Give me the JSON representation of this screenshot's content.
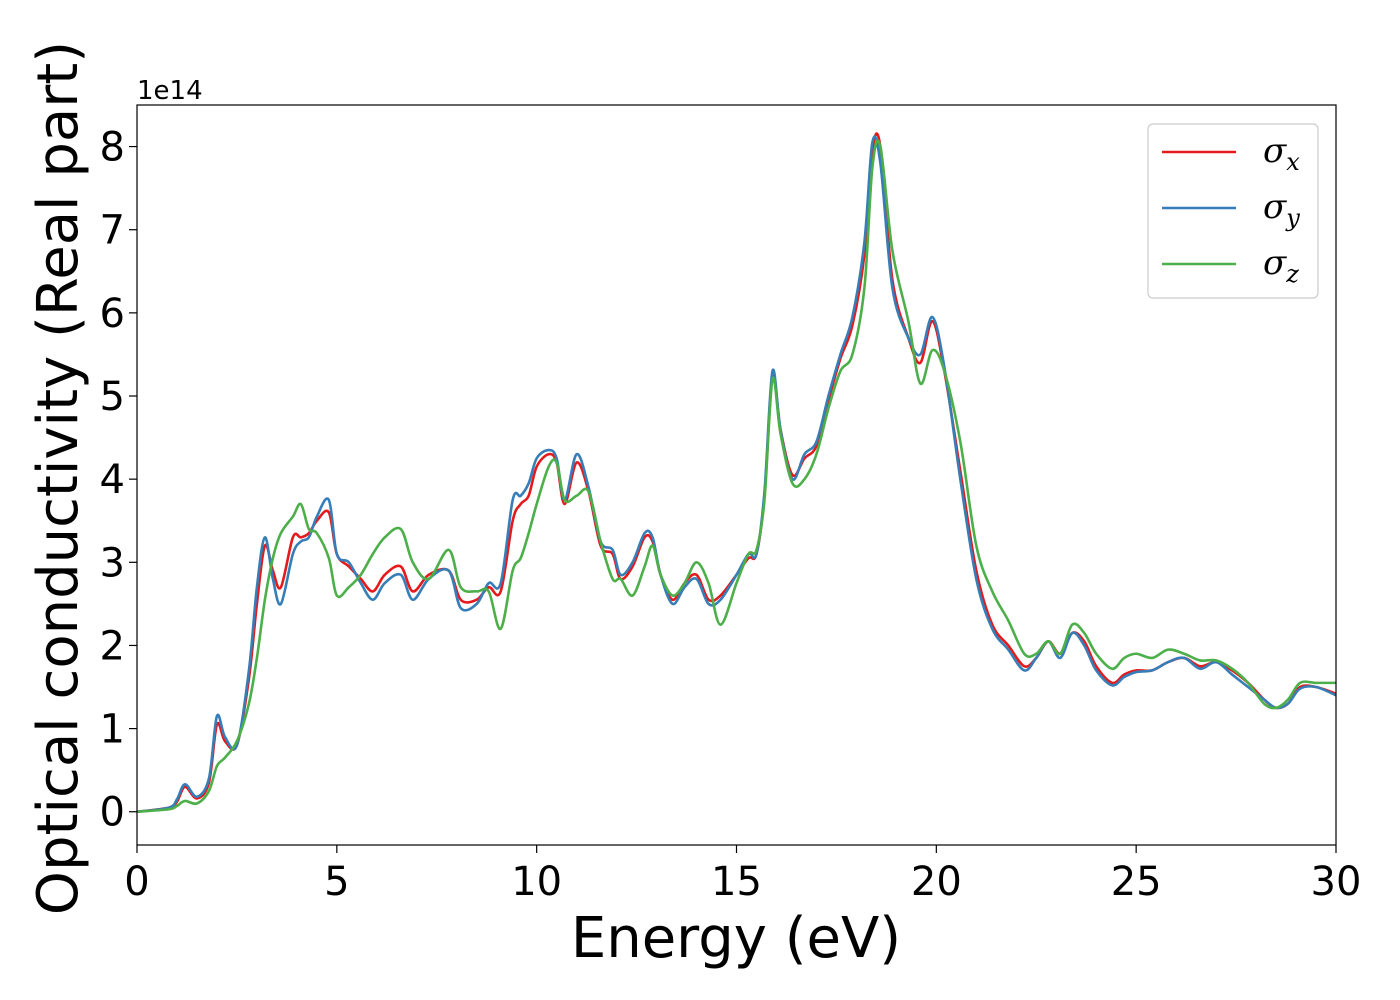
{
  "chart_data": {
    "type": "line",
    "xlabel": "Energy (eV)",
    "ylabel": "Optical conductivity (Real part)",
    "y_offset_label": "1e14",
    "xlim": [
      0,
      30
    ],
    "ylim": [
      -0.4,
      8.5
    ],
    "x_ticks": [
      0,
      5,
      10,
      15,
      20,
      25,
      30
    ],
    "y_ticks": [
      0,
      1,
      2,
      3,
      4,
      5,
      6,
      7,
      8
    ],
    "grid": false,
    "legend_position": "top-right",
    "series": [
      {
        "name": "σx",
        "symbol": "σ",
        "subscript": "x",
        "color": "#e41a1c",
        "x": [
          0,
          0.8,
          1.0,
          1.2,
          1.5,
          1.8,
          2.0,
          2.2,
          2.5,
          2.8,
          3.0,
          3.2,
          3.4,
          3.6,
          3.9,
          4.1,
          4.3,
          4.5,
          4.8,
          5.0,
          5.3,
          5.6,
          5.9,
          6.2,
          6.6,
          6.9,
          7.3,
          7.8,
          8.1,
          8.5,
          8.8,
          9.1,
          9.4,
          9.6,
          9.8,
          10.0,
          10.3,
          10.5,
          10.7,
          11.0,
          11.3,
          11.6,
          11.9,
          12.1,
          12.4,
          12.7,
          12.9,
          13.1,
          13.4,
          13.7,
          14.0,
          14.3,
          14.6,
          15.0,
          15.3,
          15.5,
          15.7,
          15.9,
          16.1,
          16.4,
          16.7,
          17.0,
          17.3,
          17.6,
          17.9,
          18.2,
          18.4,
          18.6,
          18.9,
          19.3,
          19.6,
          19.9,
          20.2,
          20.6,
          21.0,
          21.4,
          21.8,
          22.2,
          22.5,
          22.8,
          23.1,
          23.4,
          23.7,
          24.0,
          24.4,
          24.7,
          25.0,
          25.4,
          25.8,
          26.2,
          26.6,
          27.0,
          27.4,
          27.8,
          28.2,
          28.5,
          28.8,
          29.1,
          29.5,
          30.0
        ],
        "values": [
          0,
          0.05,
          0.12,
          0.3,
          0.16,
          0.35,
          1.05,
          0.85,
          0.8,
          1.6,
          2.5,
          3.2,
          2.9,
          2.7,
          3.3,
          3.3,
          3.35,
          3.5,
          3.6,
          3.1,
          2.95,
          2.8,
          2.65,
          2.85,
          2.95,
          2.65,
          2.85,
          2.9,
          2.55,
          2.55,
          2.7,
          2.65,
          3.5,
          3.7,
          3.8,
          4.15,
          4.3,
          4.2,
          3.7,
          4.2,
          3.85,
          3.2,
          3.1,
          2.8,
          2.95,
          3.3,
          3.25,
          2.85,
          2.55,
          2.75,
          2.85,
          2.55,
          2.6,
          2.85,
          3.05,
          3.1,
          3.8,
          5.25,
          4.6,
          4.05,
          4.25,
          4.4,
          4.95,
          5.45,
          5.85,
          6.7,
          7.95,
          8.0,
          6.4,
          5.7,
          5.4,
          5.9,
          5.3,
          4.1,
          2.9,
          2.25,
          2.0,
          1.75,
          1.85,
          2.05,
          1.9,
          2.15,
          2.05,
          1.75,
          1.55,
          1.65,
          1.7,
          1.7,
          1.8,
          1.85,
          1.75,
          1.8,
          1.7,
          1.55,
          1.35,
          1.25,
          1.3,
          1.5,
          1.5,
          1.42
        ]
      },
      {
        "name": "σy",
        "symbol": "σ",
        "subscript": "y",
        "color": "#377eb8",
        "x": [
          0,
          0.8,
          1.0,
          1.2,
          1.5,
          1.8,
          2.0,
          2.2,
          2.5,
          2.8,
          3.0,
          3.2,
          3.4,
          3.6,
          3.9,
          4.1,
          4.3,
          4.5,
          4.8,
          5.0,
          5.3,
          5.6,
          5.9,
          6.2,
          6.6,
          6.9,
          7.3,
          7.8,
          8.1,
          8.5,
          8.8,
          9.1,
          9.4,
          9.6,
          9.8,
          10.0,
          10.3,
          10.5,
          10.7,
          11.0,
          11.3,
          11.6,
          11.9,
          12.1,
          12.4,
          12.7,
          12.9,
          13.1,
          13.4,
          13.7,
          14.0,
          14.3,
          14.6,
          15.0,
          15.3,
          15.5,
          15.7,
          15.9,
          16.1,
          16.4,
          16.7,
          17.0,
          17.3,
          17.6,
          17.9,
          18.2,
          18.4,
          18.6,
          18.9,
          19.3,
          19.6,
          19.9,
          20.2,
          20.6,
          21.0,
          21.4,
          21.8,
          22.2,
          22.5,
          22.8,
          23.1,
          23.4,
          23.7,
          24.0,
          24.4,
          24.7,
          25.0,
          25.4,
          25.8,
          26.2,
          26.6,
          27.0,
          27.4,
          27.8,
          28.2,
          28.5,
          28.8,
          29.1,
          29.5,
          30.0
        ],
        "values": [
          0,
          0.05,
          0.15,
          0.33,
          0.18,
          0.4,
          1.15,
          0.9,
          0.8,
          1.7,
          2.7,
          3.3,
          2.8,
          2.5,
          3.1,
          3.25,
          3.3,
          3.55,
          3.75,
          3.1,
          3.0,
          2.75,
          2.55,
          2.75,
          2.85,
          2.55,
          2.8,
          2.9,
          2.45,
          2.5,
          2.75,
          2.75,
          3.75,
          3.8,
          3.95,
          4.25,
          4.35,
          4.25,
          3.75,
          4.3,
          3.9,
          3.25,
          3.15,
          2.85,
          3.0,
          3.35,
          3.3,
          2.85,
          2.5,
          2.7,
          2.8,
          2.5,
          2.55,
          2.85,
          3.1,
          3.1,
          3.85,
          5.3,
          4.6,
          4.0,
          4.3,
          4.45,
          5.0,
          5.5,
          5.95,
          6.85,
          8.05,
          7.8,
          6.3,
          5.7,
          5.5,
          5.95,
          5.35,
          4.0,
          2.8,
          2.2,
          1.95,
          1.7,
          1.85,
          2.05,
          1.85,
          2.15,
          2.0,
          1.7,
          1.52,
          1.62,
          1.68,
          1.7,
          1.8,
          1.85,
          1.72,
          1.8,
          1.65,
          1.5,
          1.35,
          1.25,
          1.3,
          1.48,
          1.5,
          1.4
        ]
      },
      {
        "name": "σz",
        "symbol": "σ",
        "subscript": "z",
        "color": "#4daf4a",
        "x": [
          0,
          0.8,
          1.0,
          1.2,
          1.5,
          1.8,
          2.0,
          2.2,
          2.5,
          2.8,
          3.0,
          3.2,
          3.4,
          3.6,
          3.9,
          4.1,
          4.3,
          4.5,
          4.8,
          5.0,
          5.3,
          5.6,
          5.9,
          6.2,
          6.6,
          6.9,
          7.3,
          7.8,
          8.1,
          8.5,
          8.8,
          9.1,
          9.4,
          9.6,
          9.8,
          10.0,
          10.3,
          10.5,
          10.7,
          11.0,
          11.3,
          11.6,
          11.9,
          12.1,
          12.4,
          12.7,
          12.9,
          13.1,
          13.4,
          13.7,
          14.0,
          14.3,
          14.6,
          15.0,
          15.3,
          15.5,
          15.7,
          15.9,
          16.1,
          16.4,
          16.7,
          17.0,
          17.3,
          17.6,
          17.9,
          18.2,
          18.4,
          18.6,
          18.9,
          19.3,
          19.6,
          19.9,
          20.2,
          20.6,
          21.0,
          21.4,
          21.8,
          22.2,
          22.5,
          22.8,
          23.1,
          23.4,
          23.7,
          24.0,
          24.4,
          24.7,
          25.0,
          25.4,
          25.8,
          26.2,
          26.6,
          27.0,
          27.4,
          27.8,
          28.2,
          28.5,
          28.8,
          29.1,
          29.5,
          30.0
        ],
        "values": [
          0,
          0.03,
          0.07,
          0.13,
          0.1,
          0.25,
          0.55,
          0.65,
          0.85,
          1.3,
          1.85,
          2.55,
          3.05,
          3.35,
          3.55,
          3.7,
          3.4,
          3.35,
          3.05,
          2.6,
          2.7,
          2.85,
          3.1,
          3.3,
          3.4,
          3.0,
          2.8,
          3.15,
          2.7,
          2.65,
          2.65,
          2.2,
          2.9,
          3.05,
          3.35,
          3.7,
          4.15,
          4.2,
          3.75,
          3.8,
          3.85,
          3.25,
          2.8,
          2.8,
          2.6,
          2.95,
          3.2,
          2.85,
          2.6,
          2.75,
          3.0,
          2.75,
          2.25,
          2.75,
          3.1,
          3.15,
          3.75,
          5.2,
          4.55,
          3.95,
          4.0,
          4.3,
          4.85,
          5.3,
          5.5,
          6.3,
          7.75,
          8.0,
          6.75,
          5.9,
          5.15,
          5.55,
          5.3,
          4.45,
          3.2,
          2.65,
          2.3,
          1.9,
          1.9,
          2.05,
          1.9,
          2.25,
          2.15,
          1.9,
          1.72,
          1.85,
          1.9,
          1.85,
          1.95,
          1.9,
          1.82,
          1.82,
          1.72,
          1.55,
          1.3,
          1.25,
          1.35,
          1.55,
          1.55,
          1.55
        ]
      }
    ]
  }
}
